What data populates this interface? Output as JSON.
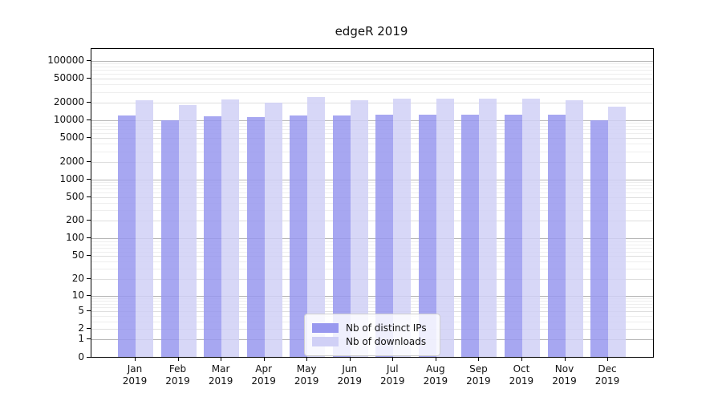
{
  "chart_data": {
    "type": "bar",
    "title": "edgeR 2019",
    "months": [
      "Jan",
      "Feb",
      "Mar",
      "Apr",
      "May",
      "Jun",
      "Jul",
      "Aug",
      "Sep",
      "Oct",
      "Nov",
      "Dec"
    ],
    "year": "2019",
    "series": [
      {
        "name": "Nb of distinct IPs",
        "color_key": "ips",
        "values": [
          12000,
          10000,
          11500,
          11200,
          12100,
          11900,
          12300,
          12300,
          12500,
          12300,
          12500,
          10000
        ]
      },
      {
        "name": "Nb of downloads",
        "color_key": "downloads",
        "values": [
          21700,
          18000,
          22200,
          19900,
          25000,
          21500,
          22900,
          23000,
          22900,
          22900,
          21900,
          16800
        ]
      }
    ],
    "y_ticks": [
      0,
      1,
      2,
      5,
      10,
      20,
      50,
      100,
      200,
      500,
      1000,
      2000,
      5000,
      10000,
      20000,
      50000,
      100000
    ],
    "y_scale": "log10(value+1)",
    "ylim": [
      0,
      160000
    ],
    "xlabel": "",
    "ylabel": "",
    "grid": true,
    "legend_position": "lower center"
  },
  "colors": {
    "ips": "#9898ef",
    "downloads": "#d0d0f6",
    "bar_opacity": 0.85,
    "major_grid": "#b6b6b6",
    "minor_grid": "#dedede",
    "subminor_grid": "#eeeeee",
    "axis": "#000000"
  }
}
